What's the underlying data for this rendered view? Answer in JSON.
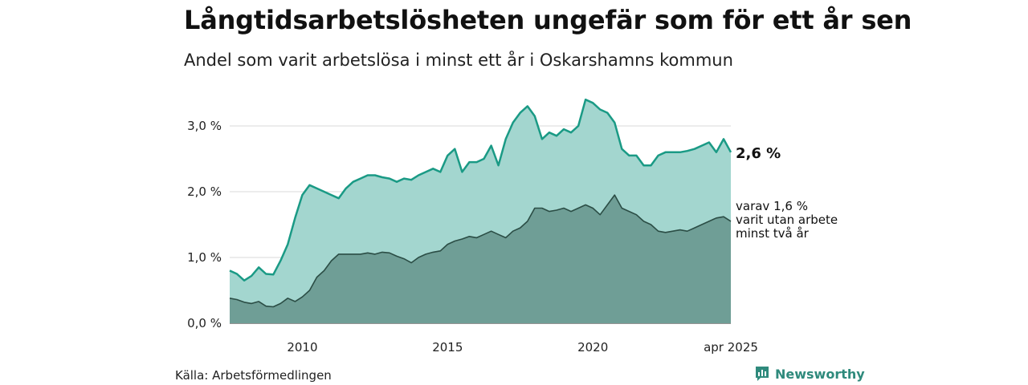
{
  "header": {
    "title": "Långtidsarbetslösheten ungefär som för ett år sen",
    "subtitle": "Andel som varit arbetslösa i minst ett år i Oskarshamns kommun"
  },
  "footer": {
    "source": "Källa: Arbetsförmedlingen",
    "brand": "Newsworthy",
    "brand_icon": "bar-chart-logo-icon",
    "brand_color": "#2f8a7c"
  },
  "chart_data": {
    "type": "area",
    "x_range": [
      "2008-01",
      "2025-04"
    ],
    "ylim": [
      0,
      3.5
    ],
    "yticks": [
      0,
      1,
      2,
      3
    ],
    "ytick_labels": [
      "0,0 %",
      "1,0 %",
      "2,0 %",
      "3,0 %"
    ],
    "xtick_labels": [
      "2010",
      "2015",
      "2020",
      "apr 2025"
    ],
    "xtick_dates": [
      "2010-07",
      "2015-07",
      "2020-07",
      "2025-04"
    ],
    "grid": true,
    "end_label": "2,6 %",
    "annotation_lines": [
      "varav 1,6 %",
      "varit utan arbete",
      "minst två år"
    ],
    "series": [
      {
        "color": "#1a9a85",
        "fill": "#a3d6cf",
        "points": [
          [
            "2008-01",
            0.8
          ],
          [
            "2008-04",
            0.75
          ],
          [
            "2008-07",
            0.65
          ],
          [
            "2008-10",
            0.72
          ],
          [
            "2009-01",
            0.85
          ],
          [
            "2009-04",
            0.75
          ],
          [
            "2009-07",
            0.74
          ],
          [
            "2009-10",
            0.95
          ],
          [
            "2010-01",
            1.2
          ],
          [
            "2010-04",
            1.6
          ],
          [
            "2010-07",
            1.95
          ],
          [
            "2010-10",
            2.1
          ],
          [
            "2011-01",
            2.05
          ],
          [
            "2011-04",
            2.0
          ],
          [
            "2011-07",
            1.95
          ],
          [
            "2011-10",
            1.9
          ],
          [
            "2012-01",
            2.05
          ],
          [
            "2012-04",
            2.15
          ],
          [
            "2012-07",
            2.2
          ],
          [
            "2012-10",
            2.25
          ],
          [
            "2013-01",
            2.25
          ],
          [
            "2013-04",
            2.22
          ],
          [
            "2013-07",
            2.2
          ],
          [
            "2013-10",
            2.15
          ],
          [
            "2014-01",
            2.2
          ],
          [
            "2014-04",
            2.18
          ],
          [
            "2014-07",
            2.25
          ],
          [
            "2014-10",
            2.3
          ],
          [
            "2015-01",
            2.35
          ],
          [
            "2015-04",
            2.3
          ],
          [
            "2015-07",
            2.55
          ],
          [
            "2015-10",
            2.65
          ],
          [
            "2016-01",
            2.3
          ],
          [
            "2016-04",
            2.45
          ],
          [
            "2016-07",
            2.45
          ],
          [
            "2016-10",
            2.5
          ],
          [
            "2017-01",
            2.7
          ],
          [
            "2017-04",
            2.4
          ],
          [
            "2017-07",
            2.8
          ],
          [
            "2017-10",
            3.05
          ],
          [
            "2018-01",
            3.2
          ],
          [
            "2018-04",
            3.3
          ],
          [
            "2018-07",
            3.15
          ],
          [
            "2018-10",
            2.8
          ],
          [
            "2019-01",
            2.9
          ],
          [
            "2019-04",
            2.85
          ],
          [
            "2019-07",
            2.95
          ],
          [
            "2019-10",
            2.9
          ],
          [
            "2020-01",
            3.0
          ],
          [
            "2020-04",
            3.4
          ],
          [
            "2020-07",
            3.35
          ],
          [
            "2020-10",
            3.25
          ],
          [
            "2021-01",
            3.2
          ],
          [
            "2021-04",
            3.05
          ],
          [
            "2021-07",
            2.65
          ],
          [
            "2021-10",
            2.55
          ],
          [
            "2022-01",
            2.55
          ],
          [
            "2022-04",
            2.4
          ],
          [
            "2022-07",
            2.4
          ],
          [
            "2022-10",
            2.55
          ],
          [
            "2023-01",
            2.6
          ],
          [
            "2023-04",
            2.6
          ],
          [
            "2023-07",
            2.6
          ],
          [
            "2023-10",
            2.62
          ],
          [
            "2024-01",
            2.65
          ],
          [
            "2024-04",
            2.7
          ],
          [
            "2024-07",
            2.75
          ],
          [
            "2024-10",
            2.6
          ],
          [
            "2025-01",
            2.8
          ],
          [
            "2025-04",
            2.6
          ]
        ]
      },
      {
        "color": "#2b4d45",
        "fill": "#6f9e96",
        "points": [
          [
            "2008-01",
            0.38
          ],
          [
            "2008-04",
            0.36
          ],
          [
            "2008-07",
            0.32
          ],
          [
            "2008-10",
            0.3
          ],
          [
            "2009-01",
            0.33
          ],
          [
            "2009-04",
            0.26
          ],
          [
            "2009-07",
            0.25
          ],
          [
            "2009-10",
            0.3
          ],
          [
            "2010-01",
            0.38
          ],
          [
            "2010-04",
            0.33
          ],
          [
            "2010-07",
            0.4
          ],
          [
            "2010-10",
            0.5
          ],
          [
            "2011-01",
            0.7
          ],
          [
            "2011-04",
            0.8
          ],
          [
            "2011-07",
            0.95
          ],
          [
            "2011-10",
            1.05
          ],
          [
            "2012-01",
            1.05
          ],
          [
            "2012-04",
            1.05
          ],
          [
            "2012-07",
            1.05
          ],
          [
            "2012-10",
            1.07
          ],
          [
            "2013-01",
            1.05
          ],
          [
            "2013-04",
            1.08
          ],
          [
            "2013-07",
            1.07
          ],
          [
            "2013-10",
            1.02
          ],
          [
            "2014-01",
            0.98
          ],
          [
            "2014-04",
            0.92
          ],
          [
            "2014-07",
            1.0
          ],
          [
            "2014-10",
            1.05
          ],
          [
            "2015-01",
            1.08
          ],
          [
            "2015-04",
            1.1
          ],
          [
            "2015-07",
            1.2
          ],
          [
            "2015-10",
            1.25
          ],
          [
            "2016-01",
            1.28
          ],
          [
            "2016-04",
            1.32
          ],
          [
            "2016-07",
            1.3
          ],
          [
            "2016-10",
            1.35
          ],
          [
            "2017-01",
            1.4
          ],
          [
            "2017-04",
            1.35
          ],
          [
            "2017-07",
            1.3
          ],
          [
            "2017-10",
            1.4
          ],
          [
            "2018-01",
            1.45
          ],
          [
            "2018-04",
            1.55
          ],
          [
            "2018-07",
            1.75
          ],
          [
            "2018-10",
            1.75
          ],
          [
            "2019-01",
            1.7
          ],
          [
            "2019-04",
            1.72
          ],
          [
            "2019-07",
            1.75
          ],
          [
            "2019-10",
            1.7
          ],
          [
            "2020-01",
            1.75
          ],
          [
            "2020-04",
            1.8
          ],
          [
            "2020-07",
            1.75
          ],
          [
            "2020-10",
            1.65
          ],
          [
            "2021-01",
            1.8
          ],
          [
            "2021-04",
            1.95
          ],
          [
            "2021-07",
            1.75
          ],
          [
            "2021-10",
            1.7
          ],
          [
            "2022-01",
            1.65
          ],
          [
            "2022-04",
            1.55
          ],
          [
            "2022-07",
            1.5
          ],
          [
            "2022-10",
            1.4
          ],
          [
            "2023-01",
            1.38
          ],
          [
            "2023-04",
            1.4
          ],
          [
            "2023-07",
            1.42
          ],
          [
            "2023-10",
            1.4
          ],
          [
            "2024-01",
            1.45
          ],
          [
            "2024-04",
            1.5
          ],
          [
            "2024-07",
            1.55
          ],
          [
            "2024-10",
            1.6
          ],
          [
            "2025-01",
            1.62
          ],
          [
            "2025-04",
            1.55
          ]
        ]
      }
    ]
  }
}
